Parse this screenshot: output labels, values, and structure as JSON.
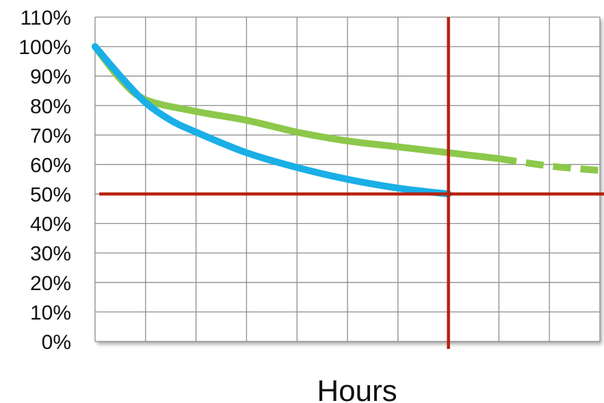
{
  "chart_data": {
    "type": "line",
    "xlabel": "Hours",
    "ylabel": "",
    "x_ticks_shown": false,
    "x_gridlines": 10,
    "ylim": [
      0,
      110
    ],
    "y_ticks": [
      "0%",
      "10%",
      "20%",
      "30%",
      "40%",
      "50%",
      "60%",
      "70%",
      "80%",
      "90%",
      "100%",
      "110%"
    ],
    "grid": true,
    "series": [
      {
        "color": "#1aafe6",
        "style": "solid",
        "x": [
          0,
          0.5,
          1,
          1.5,
          2,
          3,
          4,
          5,
          6,
          7
        ],
        "y": [
          100,
          90,
          81,
          75,
          71,
          64,
          59,
          55,
          52,
          50
        ]
      },
      {
        "color": "#8cc84b",
        "style": "solid",
        "x": [
          0,
          0.5,
          1,
          2,
          3,
          4,
          5,
          6,
          7,
          8
        ],
        "y": [
          100,
          89,
          82,
          78,
          75,
          71,
          68,
          66,
          64,
          62
        ]
      },
      {
        "color": "#8cc84b",
        "style": "dashed",
        "x": [
          8,
          9,
          10
        ],
        "y": [
          62,
          59.5,
          58
        ]
      }
    ],
    "reference_lines": [
      {
        "axis": "y",
        "value": 50,
        "color": "#b8200e"
      },
      {
        "axis": "x",
        "value": 7,
        "color": "#b8200e"
      }
    ]
  }
}
